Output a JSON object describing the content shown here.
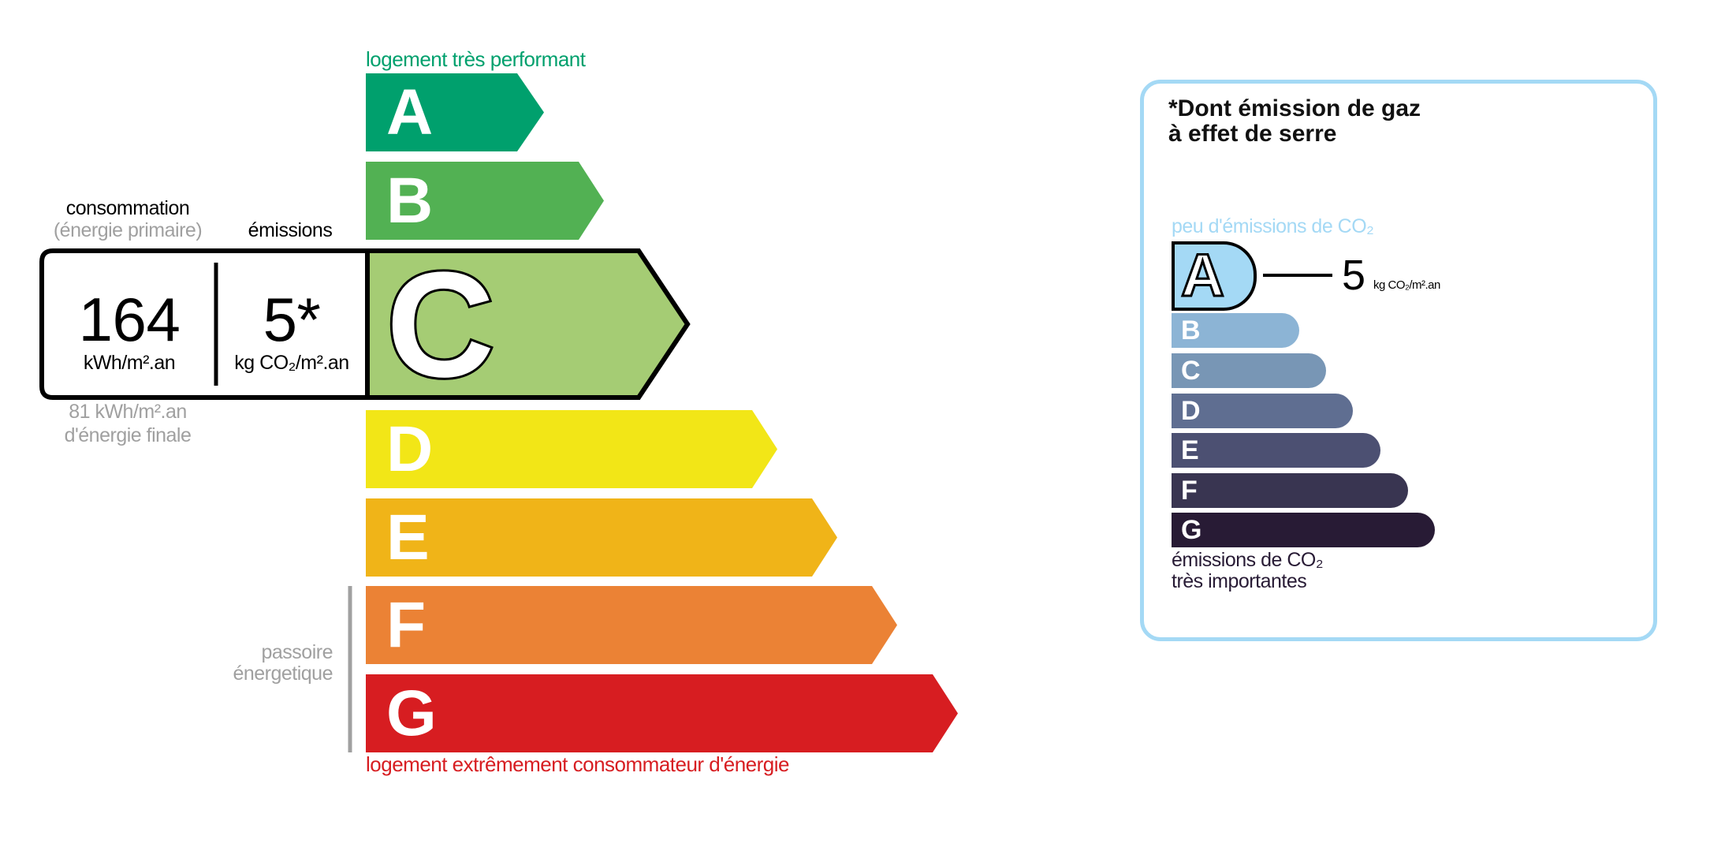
{
  "energy": {
    "top_label": "logement très performant",
    "bottom_label": "logement extrêmement consommateur d'énergie",
    "passoire_label_1": "passoire",
    "passoire_label_2": "énergetique",
    "classes": [
      {
        "letter": "A",
        "color": "#00a06d"
      },
      {
        "letter": "B",
        "color": "#52b153"
      },
      {
        "letter": "C",
        "color": "#a5cc74"
      },
      {
        "letter": "D",
        "color": "#f2e617"
      },
      {
        "letter": "E",
        "color": "#f0b418"
      },
      {
        "letter": "F",
        "color": "#eb8235"
      },
      {
        "letter": "G",
        "color": "#d71d21"
      }
    ],
    "current_class": "C",
    "consommation_label": "consommation",
    "primaire_label": "(énergie primaire)",
    "emissions_label": "émissions",
    "consommation_value": "164",
    "consommation_unit": "kWh/m².an",
    "emissions_value": "5*",
    "emissions_unit": "kg CO₂/m².an",
    "finale_value": "81 kWh/m².an",
    "finale_label": "d'énergie finale"
  },
  "ges": {
    "title_1": "*Dont émission de gaz",
    "title_2": "à effet de serre",
    "top_label": "peu d'émissions de CO₂",
    "bottom_label_1": "émissions de CO₂",
    "bottom_label_2": "très importantes",
    "current_class": "A",
    "value": "5",
    "unit": "kg CO₂/m².an",
    "classes": [
      {
        "letter": "A",
        "color": "#a4d9f5"
      },
      {
        "letter": "B",
        "color": "#8cb4d5"
      },
      {
        "letter": "C",
        "color": "#7896b5"
      },
      {
        "letter": "D",
        "color": "#5f6e91"
      },
      {
        "letter": "E",
        "color": "#4c5072"
      },
      {
        "letter": "F",
        "color": "#393551"
      },
      {
        "letter": "G",
        "color": "#281b35"
      }
    ]
  }
}
